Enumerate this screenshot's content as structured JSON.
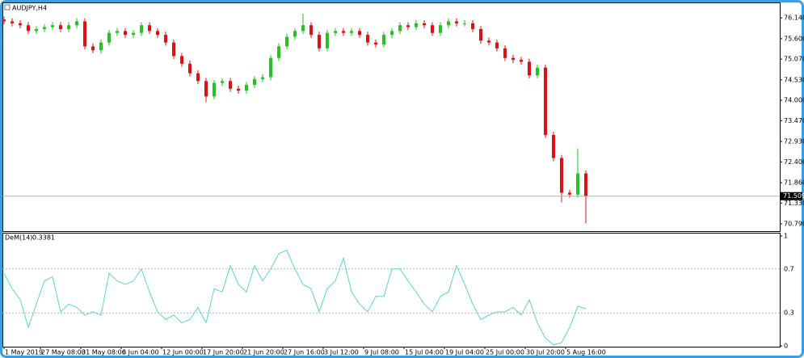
{
  "chart_data": [
    {
      "type": "candlestick",
      "title": "AUDJPY,H4",
      "up_color": "#22c322",
      "down_color": "#e01010",
      "open": [
        76.1,
        76.05,
        76.0,
        75.95,
        75.8,
        75.85,
        75.9,
        75.95,
        75.85,
        75.95,
        76.05,
        75.4,
        75.3,
        75.5,
        75.75,
        75.8,
        75.7,
        75.75,
        75.95,
        75.8,
        75.7,
        75.5,
        75.15,
        74.95,
        74.7,
        74.5,
        74.1,
        74.45,
        74.5,
        74.3,
        74.25,
        74.4,
        74.55,
        74.6,
        75.1,
        75.4,
        75.65,
        75.8,
        75.95,
        75.7,
        75.35,
        75.75,
        75.8,
        75.75,
        75.8,
        75.7,
        75.5,
        75.45,
        75.7,
        75.8,
        75.95,
        75.9,
        76.0,
        75.95,
        75.75,
        75.95,
        76.05,
        76.0,
        76.0,
        75.85,
        75.55,
        75.5,
        75.35,
        75.1,
        75.05,
        75.0,
        74.65,
        74.85,
        73.1,
        72.5,
        71.6,
        71.55,
        72.1
      ],
      "high": [
        76.18,
        76.13,
        76.08,
        76.03,
        75.93,
        75.98,
        76.03,
        76.03,
        76.03,
        76.13,
        76.13,
        75.48,
        75.58,
        75.83,
        75.88,
        75.88,
        75.83,
        76.03,
        76.03,
        75.88,
        75.78,
        75.58,
        75.23,
        75.03,
        74.78,
        74.58,
        74.53,
        74.58,
        74.58,
        74.38,
        74.48,
        74.63,
        74.68,
        75.18,
        75.48,
        75.73,
        75.88,
        76.25,
        76.03,
        75.78,
        75.83,
        75.88,
        75.88,
        75.88,
        75.88,
        75.78,
        75.58,
        75.78,
        75.88,
        76.03,
        76.03,
        76.08,
        76.08,
        76.03,
        76.03,
        76.13,
        76.13,
        76.08,
        76.08,
        75.93,
        75.63,
        75.58,
        75.43,
        75.18,
        75.13,
        75.08,
        74.93,
        74.93,
        73.18,
        72.58,
        71.68,
        72.75,
        72.18
      ],
      "low": [
        75.97,
        75.92,
        75.87,
        75.72,
        75.72,
        75.77,
        75.82,
        75.77,
        75.77,
        75.87,
        75.32,
        75.22,
        75.22,
        75.42,
        75.67,
        75.62,
        75.62,
        75.67,
        75.72,
        75.62,
        75.42,
        75.07,
        74.87,
        74.62,
        74.42,
        73.95,
        74.02,
        74.37,
        74.22,
        74.17,
        74.17,
        74.32,
        74.47,
        74.52,
        75.02,
        75.32,
        75.57,
        75.72,
        75.62,
        75.27,
        75.27,
        75.67,
        75.67,
        75.67,
        75.62,
        75.42,
        75.37,
        75.37,
        75.62,
        75.72,
        75.82,
        75.82,
        75.87,
        75.67,
        75.67,
        75.87,
        75.92,
        75.92,
        75.77,
        75.47,
        75.42,
        75.27,
        75.02,
        74.97,
        74.92,
        74.57,
        74.57,
        73.02,
        72.42,
        71.35,
        71.47,
        71.47,
        70.8
      ],
      "close": [
        76.05,
        76.0,
        75.95,
        75.8,
        75.85,
        75.9,
        75.95,
        75.85,
        75.95,
        76.05,
        75.4,
        75.3,
        75.5,
        75.75,
        75.8,
        75.7,
        75.75,
        75.95,
        75.8,
        75.7,
        75.5,
        75.15,
        74.95,
        74.7,
        74.5,
        74.1,
        74.45,
        74.5,
        74.3,
        74.25,
        74.4,
        74.55,
        74.6,
        75.1,
        75.4,
        75.65,
        75.8,
        75.95,
        75.7,
        75.35,
        75.75,
        75.8,
        75.75,
        75.8,
        75.7,
        75.5,
        75.45,
        75.7,
        75.8,
        75.95,
        75.9,
        76.0,
        75.95,
        75.75,
        75.95,
        76.05,
        76.0,
        76.0,
        75.85,
        75.55,
        75.5,
        75.35,
        75.1,
        75.05,
        75.0,
        74.65,
        74.85,
        73.1,
        72.5,
        71.6,
        71.55,
        72.1,
        71.509
      ],
      "current_price": 71.509,
      "xlim": [
        -0.2,
        96
      ],
      "xticks": [
        {
          "value": 0,
          "label": "1 May 2019"
        },
        {
          "value": 4.5,
          "label": "27 May 08:00"
        },
        {
          "value": 9.5,
          "label": "31 May 08:00"
        },
        {
          "value": 14.5,
          "label": "6 Jun 04:00"
        },
        {
          "value": 19.5,
          "label": "12 Jun 00:00"
        },
        {
          "value": 24.5,
          "label": "17 Jun 20:00"
        },
        {
          "value": 29.5,
          "label": "21 Jun 20:00"
        },
        {
          "value": 34.5,
          "label": "27 Jun 16:00"
        },
        {
          "value": 39.5,
          "label": "3 Jul 12:00"
        },
        {
          "value": 44.5,
          "label": "9 Jul 08:00"
        },
        {
          "value": 49.5,
          "label": "15 Jul 04:00"
        },
        {
          "value": 54.5,
          "label": "19 Jul 04:00"
        },
        {
          "value": 59.5,
          "label": "25 Jul 00:00"
        },
        {
          "value": 64.5,
          "label": "30 Jul 20:00"
        },
        {
          "value": 69.5,
          "label": "5 Aug 16:00"
        }
      ],
      "ylim": [
        70.58,
        76.5
      ],
      "yticks": [
        {
          "value": 76.14,
          "label": "76.140"
        },
        {
          "value": 75.6,
          "label": "75.600"
        },
        {
          "value": 75.07,
          "label": "75.070"
        },
        {
          "value": 74.53,
          "label": "74.530"
        },
        {
          "value": 74.0,
          "label": "74.000"
        },
        {
          "value": 73.47,
          "label": "73.470"
        },
        {
          "value": 72.93,
          "label": "72.930"
        },
        {
          "value": 72.4,
          "label": "72.400"
        },
        {
          "value": 71.86,
          "label": "71.860"
        },
        {
          "value": 71.33,
          "label": "71.330"
        },
        {
          "value": 70.79,
          "label": "70.790"
        }
      ]
    },
    {
      "type": "line",
      "title": "DeM(14)",
      "color": "#5cd6c4",
      "values": [
        0.66,
        0.52,
        0.42,
        0.17,
        0.38,
        0.59,
        0.63,
        0.31,
        0.38,
        0.35,
        0.28,
        0.31,
        0.28,
        0.66,
        0.59,
        0.56,
        0.59,
        0.7,
        0.49,
        0.31,
        0.24,
        0.28,
        0.21,
        0.24,
        0.35,
        0.21,
        0.52,
        0.49,
        0.73,
        0.56,
        0.49,
        0.73,
        0.59,
        0.7,
        0.84,
        0.87,
        0.7,
        0.56,
        0.52,
        0.31,
        0.52,
        0.59,
        0.8,
        0.49,
        0.38,
        0.31,
        0.45,
        0.45,
        0.7,
        0.7,
        0.59,
        0.49,
        0.38,
        0.31,
        0.45,
        0.49,
        0.73,
        0.56,
        0.38,
        0.24,
        0.28,
        0.31,
        0.31,
        0.35,
        0.28,
        0.42,
        0.21,
        0.07,
        0.01,
        0.03,
        0.17,
        0.36,
        0.3381
      ],
      "ylim": [
        0,
        1
      ],
      "yticks": [
        1,
        0.7,
        0.3,
        0
      ]
    }
  ]
}
